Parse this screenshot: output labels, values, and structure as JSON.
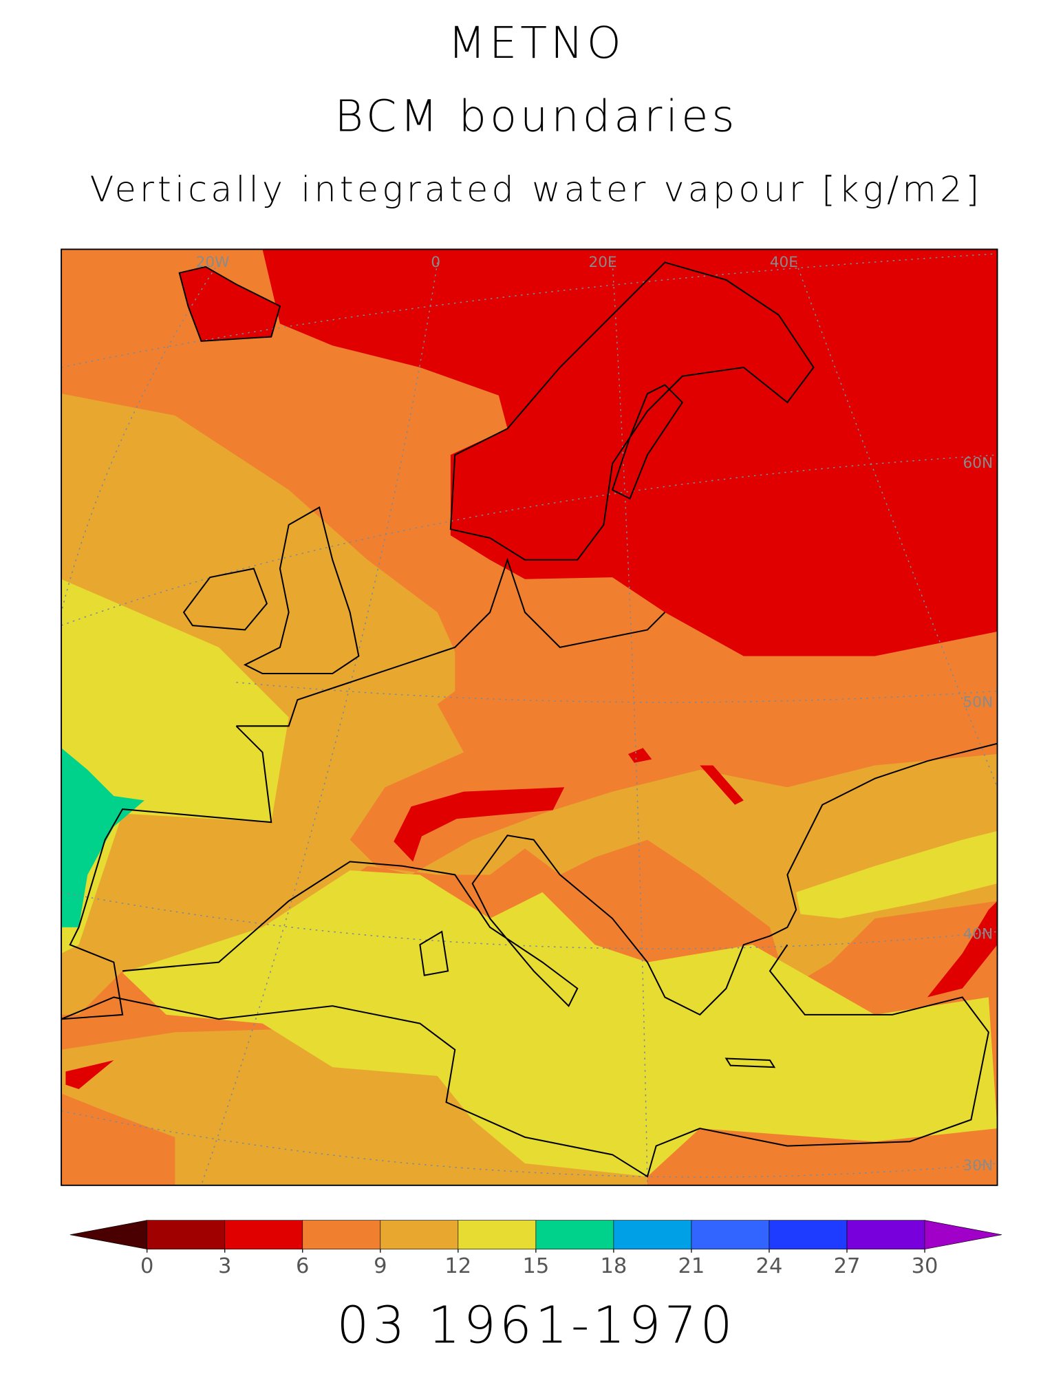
{
  "title": "METNO",
  "subtitle": "BCM boundaries",
  "variable": "Vertically integrated water vapour [kg/m2]",
  "period": "03 1961-1970",
  "graticule_labels": {
    "lon": [
      "20W",
      "0",
      "20E",
      "40E"
    ],
    "lat": [
      "60N",
      "50N",
      "40N",
      "30N"
    ]
  },
  "colorbar": {
    "ticks": [
      0,
      3,
      6,
      9,
      12,
      15,
      18,
      21,
      24,
      27,
      30
    ],
    "colors": [
      "#4a0000",
      "#a00000",
      "#e00000",
      "#f08030",
      "#e8a830",
      "#e6dc32",
      "#00d28c",
      "#00a0e6",
      "#3264ff",
      "#1e3cff",
      "#7800dc",
      "#a000c8"
    ]
  }
}
